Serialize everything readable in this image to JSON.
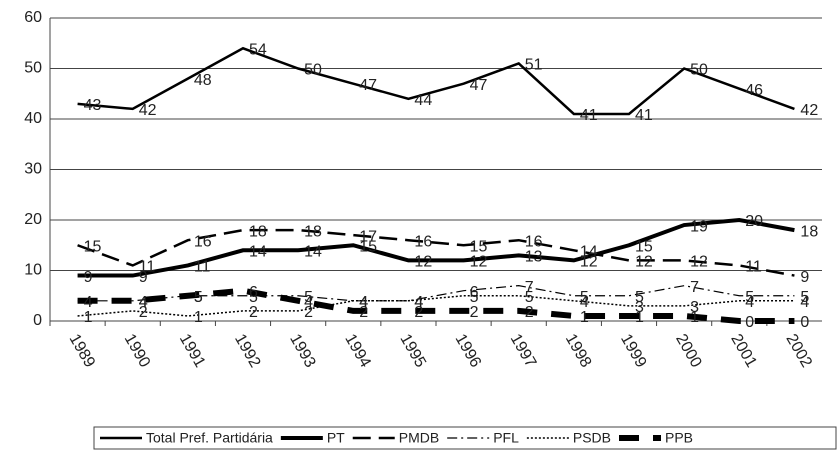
{
  "chart_data": {
    "type": "line",
    "categories": [
      "1989",
      "1990",
      "1991",
      "1992",
      "1993",
      "1994",
      "1995",
      "1996",
      "1997",
      "1998",
      "1999",
      "2000",
      "2001",
      "2002"
    ],
    "ylim": [
      0,
      60
    ],
    "yticks": [
      0,
      10,
      20,
      30,
      40,
      50,
      60
    ],
    "grid": true,
    "series": [
      {
        "name": "Total Pref. Partidária",
        "color": "#000000",
        "width": 2.5,
        "dash": "none",
        "values": [
          43,
          42,
          48,
          54,
          50,
          47,
          44,
          47,
          51,
          41,
          41,
          50,
          46,
          42
        ]
      },
      {
        "name": "PT",
        "color": "#000000",
        "width": 4,
        "dash": "none",
        "values": [
          9,
          9,
          11,
          14,
          14,
          15,
          12,
          12,
          13,
          12,
          15,
          19,
          20,
          18
        ]
      },
      {
        "name": "PMDB",
        "color": "#000000",
        "width": 2.5,
        "dash": "18,8",
        "values": [
          15,
          11,
          16,
          18,
          18,
          17,
          16,
          15,
          16,
          14,
          12,
          12,
          11,
          9
        ]
      },
      {
        "name": "PFL",
        "color": "#000000",
        "width": 1.2,
        "dash": "10,4,2,4",
        "values": [
          4,
          4,
          5,
          5,
          5,
          4,
          4,
          6,
          7,
          5,
          5,
          7,
          5,
          5
        ]
      },
      {
        "name": "PSDB",
        "color": "#000000",
        "width": 1.5,
        "dash": "2,2",
        "values": [
          1,
          2,
          1,
          2,
          2,
          4,
          4,
          5,
          5,
          4,
          3,
          3,
          4,
          4
        ]
      },
      {
        "name": "PPB",
        "color": "#000000",
        "width": 6,
        "dash": "20,14",
        "values": [
          4,
          4,
          5,
          6,
          4,
          2,
          2,
          2,
          2,
          1,
          1,
          1,
          0,
          0
        ]
      }
    ]
  }
}
